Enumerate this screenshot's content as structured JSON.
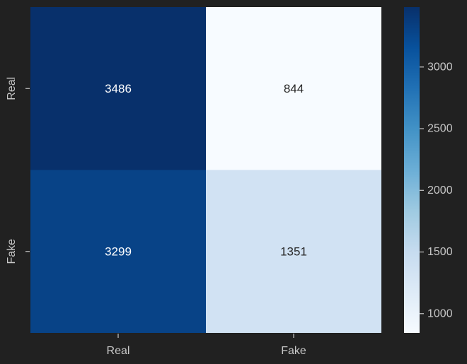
{
  "chart_data": {
    "type": "heatmap",
    "title": "",
    "xlabel": "",
    "ylabel": "",
    "x_categories": [
      "Real",
      "Fake"
    ],
    "y_categories": [
      "Real",
      "Fake"
    ],
    "values": [
      [
        3486,
        844
      ],
      [
        3299,
        1351
      ]
    ],
    "colormap": "Blues",
    "colorbar": {
      "min": 844,
      "max": 3486,
      "ticks": [
        1000,
        1500,
        2000,
        2500,
        3000
      ],
      "tick_labels": [
        "1000",
        "1500",
        "2000",
        "2500",
        "3000"
      ]
    },
    "grid": false
  },
  "colors": {
    "background": "#212121",
    "text_dark_cell": "#ffffff",
    "text_light_cell": "#262626",
    "tick": "#c8c8c8"
  }
}
